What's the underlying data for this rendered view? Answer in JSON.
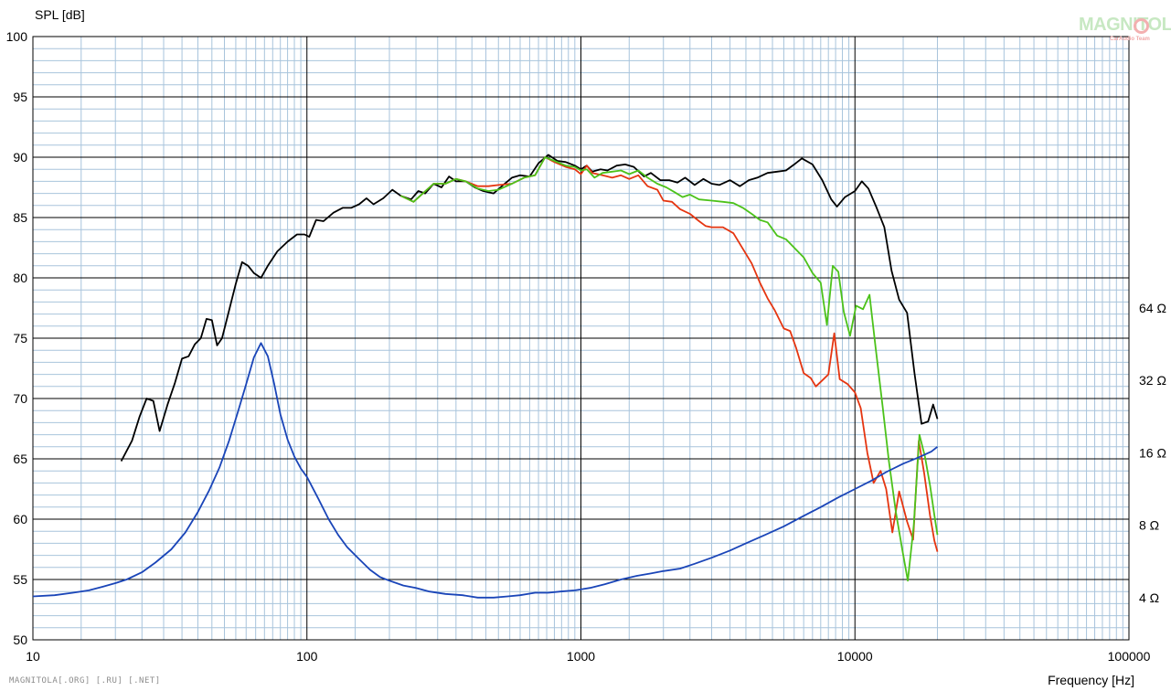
{
  "chart_data": {
    "type": "line",
    "ylabel": "SPL [dB]",
    "xlabel": "Frequency [Hz]",
    "xscale": "log",
    "xlim": [
      10,
      100000
    ],
    "ylim": [
      50,
      100
    ],
    "y_ticks": [
      "100",
      "95",
      "90",
      "85",
      "80",
      "75",
      "70",
      "65",
      "60",
      "55",
      "50"
    ],
    "x_ticks": [
      "10",
      "100",
      "1000",
      "10000",
      "100000"
    ],
    "right_axis": {
      "label_ticks": [
        {
          "label": "64 Ω",
          "db": 77.5
        },
        {
          "label": "32 Ω",
          "db": 71.5
        },
        {
          "label": "16 Ω",
          "db": 65.5
        },
        {
          "label": "8 Ω",
          "db": 59.5
        },
        {
          "label": "4 Ω",
          "db": 53.5
        }
      ]
    },
    "series": [
      {
        "name": "",
        "color": "#000000",
        "points": [
          [
            21,
            64.8
          ],
          [
            23,
            66.5
          ],
          [
            24.5,
            68.5
          ],
          [
            26,
            70
          ],
          [
            27.5,
            69.8
          ],
          [
            29,
            67.3
          ],
          [
            31,
            69.5
          ],
          [
            33,
            71.3
          ],
          [
            35,
            73.3
          ],
          [
            37,
            73.5
          ],
          [
            39,
            74.5
          ],
          [
            41,
            75
          ],
          [
            43,
            76.6
          ],
          [
            45,
            76.5
          ],
          [
            47,
            74.4
          ],
          [
            49,
            75
          ],
          [
            52,
            77.3
          ],
          [
            55,
            79.5
          ],
          [
            58,
            81.3
          ],
          [
            61,
            81
          ],
          [
            64,
            80.4
          ],
          [
            68,
            80
          ],
          [
            72,
            81
          ],
          [
            78,
            82.2
          ],
          [
            85,
            83
          ],
          [
            92,
            83.6
          ],
          [
            98,
            83.6
          ],
          [
            102,
            83.4
          ],
          [
            108,
            84.8
          ],
          [
            115,
            84.7
          ],
          [
            125,
            85.4
          ],
          [
            135,
            85.8
          ],
          [
            145,
            85.8
          ],
          [
            155,
            86.1
          ],
          [
            165,
            86.6
          ],
          [
            175,
            86.1
          ],
          [
            190,
            86.6
          ],
          [
            205,
            87.3
          ],
          [
            220,
            86.8
          ],
          [
            240,
            86.5
          ],
          [
            255,
            87.2
          ],
          [
            270,
            87
          ],
          [
            290,
            87.8
          ],
          [
            310,
            87.5
          ],
          [
            330,
            88.4
          ],
          [
            350,
            88
          ],
          [
            380,
            88
          ],
          [
            410,
            87.5
          ],
          [
            440,
            87.2
          ],
          [
            480,
            87
          ],
          [
            520,
            87.7
          ],
          [
            560,
            88.3
          ],
          [
            600,
            88.5
          ],
          [
            650,
            88.4
          ],
          [
            700,
            89.5
          ],
          [
            760,
            90.2
          ],
          [
            820,
            89.7
          ],
          [
            880,
            89.6
          ],
          [
            950,
            89.3
          ],
          [
            1000,
            89
          ],
          [
            1050,
            89.3
          ],
          [
            1100,
            88.8
          ],
          [
            1180,
            89
          ],
          [
            1250,
            88.9
          ],
          [
            1350,
            89.3
          ],
          [
            1450,
            89.4
          ],
          [
            1560,
            89.2
          ],
          [
            1700,
            88.4
          ],
          [
            1800,
            88.7
          ],
          [
            1950,
            88.1
          ],
          [
            2100,
            88.1
          ],
          [
            2250,
            87.9
          ],
          [
            2400,
            88.3
          ],
          [
            2600,
            87.7
          ],
          [
            2800,
            88.2
          ],
          [
            3000,
            87.8
          ],
          [
            3200,
            87.7
          ],
          [
            3500,
            88.1
          ],
          [
            3800,
            87.6
          ],
          [
            4100,
            88.1
          ],
          [
            4400,
            88.3
          ],
          [
            4800,
            88.7
          ],
          [
            5200,
            88.8
          ],
          [
            5600,
            88.9
          ],
          [
            6000,
            89.4
          ],
          [
            6400,
            89.9
          ],
          [
            7000,
            89.4
          ],
          [
            7600,
            88.1
          ],
          [
            8200,
            86.5
          ],
          [
            8600,
            85.9
          ],
          [
            9200,
            86.7
          ],
          [
            10000,
            87.2
          ],
          [
            10600,
            88
          ],
          [
            11200,
            87.4
          ],
          [
            12000,
            85.8
          ],
          [
            12800,
            84.2
          ],
          [
            13600,
            80.6
          ],
          [
            14500,
            78.2
          ],
          [
            15500,
            77.1
          ],
          [
            16500,
            72.1
          ],
          [
            17500,
            67.9
          ],
          [
            18500,
            68.1
          ],
          [
            19300,
            69.5
          ],
          [
            20000,
            68.3
          ]
        ]
      },
      {
        "name": "",
        "color": "#e53510",
        "points": [
          [
            220,
            86.8
          ],
          [
            245,
            86.3
          ],
          [
            265,
            87
          ],
          [
            290,
            87.8
          ],
          [
            320,
            87.8
          ],
          [
            350,
            88.2
          ],
          [
            380,
            88
          ],
          [
            420,
            87.6
          ],
          [
            460,
            87.6
          ],
          [
            500,
            87.7
          ],
          [
            560,
            87.8
          ],
          [
            620,
            88.3
          ],
          [
            680,
            88.5
          ],
          [
            740,
            90
          ],
          [
            800,
            89.6
          ],
          [
            880,
            89.2
          ],
          [
            950,
            89
          ],
          [
            1000,
            88.6
          ],
          [
            1050,
            89.3
          ],
          [
            1100,
            88.7
          ],
          [
            1200,
            88.5
          ],
          [
            1300,
            88.3
          ],
          [
            1400,
            88.5
          ],
          [
            1500,
            88.2
          ],
          [
            1620,
            88.5
          ],
          [
            1750,
            87.6
          ],
          [
            1900,
            87.3
          ],
          [
            2000,
            86.4
          ],
          [
            2150,
            86.3
          ],
          [
            2300,
            85.7
          ],
          [
            2500,
            85.3
          ],
          [
            2700,
            84.7
          ],
          [
            2850,
            84.3
          ],
          [
            3000,
            84.2
          ],
          [
            3300,
            84.2
          ],
          [
            3600,
            83.7
          ],
          [
            3900,
            82.4
          ],
          [
            4200,
            81.2
          ],
          [
            4500,
            79.6
          ],
          [
            4800,
            78.3
          ],
          [
            5100,
            77.3
          ],
          [
            5500,
            75.8
          ],
          [
            5800,
            75.6
          ],
          [
            6100,
            74.2
          ],
          [
            6500,
            72.1
          ],
          [
            6900,
            71.7
          ],
          [
            7200,
            71
          ],
          [
            7600,
            71.5
          ],
          [
            8000,
            72
          ],
          [
            8400,
            75.4
          ],
          [
            8800,
            71.6
          ],
          [
            9400,
            71.2
          ],
          [
            10000,
            70.5
          ],
          [
            10500,
            69.2
          ],
          [
            11100,
            65.5
          ],
          [
            11700,
            63
          ],
          [
            12400,
            64
          ],
          [
            13000,
            62.5
          ],
          [
            13700,
            58.9
          ],
          [
            14500,
            62.3
          ],
          [
            15500,
            59.8
          ],
          [
            16300,
            58.3
          ],
          [
            17100,
            66.5
          ],
          [
            17900,
            63.8
          ],
          [
            18800,
            60.3
          ],
          [
            19500,
            58.2
          ],
          [
            20000,
            57.3
          ]
        ]
      },
      {
        "name": "",
        "color": "#4cc21a",
        "points": [
          [
            220,
            86.8
          ],
          [
            245,
            86.3
          ],
          [
            265,
            87
          ],
          [
            290,
            87.8
          ],
          [
            320,
            87.8
          ],
          [
            350,
            88.2
          ],
          [
            380,
            88
          ],
          [
            420,
            87.4
          ],
          [
            460,
            87.2
          ],
          [
            500,
            87.3
          ],
          [
            560,
            87.8
          ],
          [
            620,
            88.3
          ],
          [
            680,
            88.5
          ],
          [
            740,
            90
          ],
          [
            800,
            89.7
          ],
          [
            880,
            89.3
          ],
          [
            950,
            89.2
          ],
          [
            1000,
            88.9
          ],
          [
            1050,
            89
          ],
          [
            1120,
            88.3
          ],
          [
            1200,
            88.7
          ],
          [
            1300,
            88.8
          ],
          [
            1400,
            88.9
          ],
          [
            1500,
            88.6
          ],
          [
            1620,
            88.9
          ],
          [
            1750,
            88.3
          ],
          [
            1900,
            87.8
          ],
          [
            2050,
            87.5
          ],
          [
            2200,
            87.1
          ],
          [
            2350,
            86.7
          ],
          [
            2500,
            86.9
          ],
          [
            2700,
            86.5
          ],
          [
            3000,
            86.4
          ],
          [
            3300,
            86.3
          ],
          [
            3600,
            86.2
          ],
          [
            3900,
            85.8
          ],
          [
            4200,
            85.3
          ],
          [
            4500,
            84.8
          ],
          [
            4800,
            84.6
          ],
          [
            5200,
            83.5
          ],
          [
            5600,
            83.2
          ],
          [
            6000,
            82.5
          ],
          [
            6500,
            81.7
          ],
          [
            7000,
            80.4
          ],
          [
            7500,
            79.6
          ],
          [
            7900,
            76.1
          ],
          [
            8300,
            81
          ],
          [
            8700,
            80.5
          ],
          [
            9100,
            77.2
          ],
          [
            9600,
            75.2
          ],
          [
            10100,
            77.7
          ],
          [
            10700,
            77.4
          ],
          [
            11300,
            78.6
          ],
          [
            11900,
            74.2
          ],
          [
            12600,
            69.5
          ],
          [
            13300,
            64.8
          ],
          [
            14100,
            60.6
          ],
          [
            14900,
            57.4
          ],
          [
            15600,
            54.9
          ],
          [
            16400,
            59.5
          ],
          [
            17200,
            67
          ],
          [
            18000,
            65.2
          ],
          [
            18800,
            62.8
          ],
          [
            19500,
            60.3
          ],
          [
            20000,
            58.7
          ]
        ]
      },
      {
        "name": "",
        "color": "#1a45b8",
        "points": [
          [
            10,
            53.6
          ],
          [
            12,
            53.7
          ],
          [
            14,
            53.9
          ],
          [
            16,
            54.1
          ],
          [
            18,
            54.4
          ],
          [
            20,
            54.7
          ],
          [
            22,
            55
          ],
          [
            25,
            55.6
          ],
          [
            28,
            56.4
          ],
          [
            32,
            57.5
          ],
          [
            36,
            58.9
          ],
          [
            40,
            60.6
          ],
          [
            44,
            62.4
          ],
          [
            48,
            64.3
          ],
          [
            52,
            66.5
          ],
          [
            56,
            68.9
          ],
          [
            60,
            71.2
          ],
          [
            64,
            73.4
          ],
          [
            68,
            74.6
          ],
          [
            72,
            73.5
          ],
          [
            76,
            71.2
          ],
          [
            80,
            68.7
          ],
          [
            85,
            66.6
          ],
          [
            90,
            65.2
          ],
          [
            95,
            64.2
          ],
          [
            100,
            63.5
          ],
          [
            110,
            61.7
          ],
          [
            120,
            60
          ],
          [
            130,
            58.7
          ],
          [
            140,
            57.7
          ],
          [
            155,
            56.7
          ],
          [
            170,
            55.8
          ],
          [
            185,
            55.2
          ],
          [
            200,
            54.9
          ],
          [
            225,
            54.5
          ],
          [
            250,
            54.3
          ],
          [
            280,
            54
          ],
          [
            320,
            53.8
          ],
          [
            370,
            53.7
          ],
          [
            420,
            53.5
          ],
          [
            480,
            53.5
          ],
          [
            540,
            53.6
          ],
          [
            600,
            53.7
          ],
          [
            680,
            53.9
          ],
          [
            760,
            53.9
          ],
          [
            840,
            54
          ],
          [
            950,
            54.1
          ],
          [
            1080,
            54.3
          ],
          [
            1220,
            54.6
          ],
          [
            1400,
            55
          ],
          [
            1600,
            55.3
          ],
          [
            1800,
            55.5
          ],
          [
            2000,
            55.7
          ],
          [
            2300,
            55.9
          ],
          [
            2600,
            56.3
          ],
          [
            3000,
            56.8
          ],
          [
            3500,
            57.4
          ],
          [
            4000,
            58
          ],
          [
            4700,
            58.7
          ],
          [
            5500,
            59.4
          ],
          [
            6400,
            60.2
          ],
          [
            7500,
            61
          ],
          [
            8700,
            61.8
          ],
          [
            10000,
            62.5
          ],
          [
            11500,
            63.2
          ],
          [
            13000,
            63.9
          ],
          [
            15000,
            64.6
          ],
          [
            17000,
            65.1
          ],
          [
            19000,
            65.6
          ],
          [
            20000,
            66
          ]
        ]
      }
    ]
  },
  "footer": "MAGNITOLA[.ORG] [.RU] [.NET]",
  "logo": {
    "main": "MAGNITOLA",
    "sub": "CarAudio Team"
  },
  "colors": {
    "major_grid": "#000000",
    "minor_grid": "#a8c4dc",
    "plot_bg": "#ffffff"
  }
}
